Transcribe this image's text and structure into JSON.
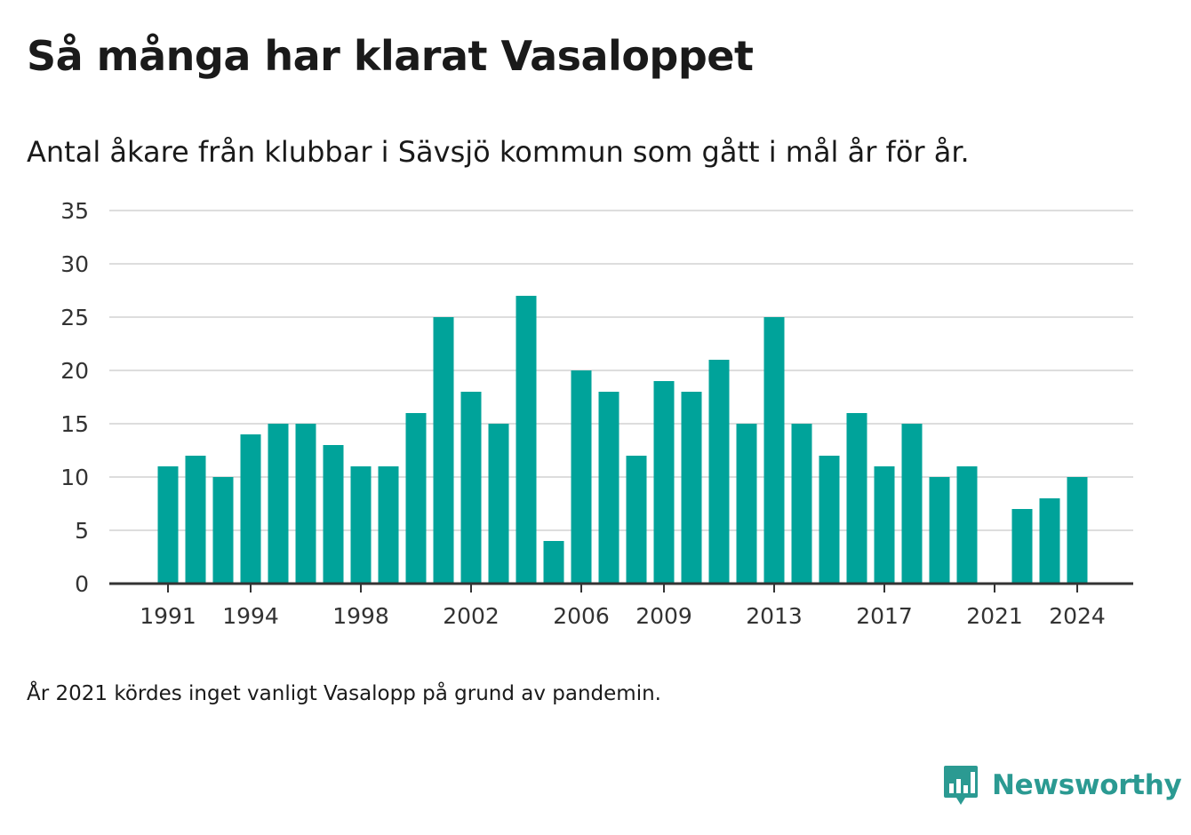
{
  "header": {
    "title": "Så många har klarat Vasaloppet",
    "subtitle": "Antal åkare från klubbar i Sävsjö kommun som gått i mål år för år."
  },
  "footnote": "År 2021 kördes inget vanligt Vasalopp på grund av pandemin.",
  "brand": {
    "name": "Newsworthy",
    "icon": "newsworthy-logo-icon",
    "color": "#2b9a92"
  },
  "chart_data": {
    "type": "bar",
    "title": "",
    "xlabel": "",
    "ylabel": "",
    "categories": [
      1991,
      1992,
      1993,
      1994,
      1995,
      1996,
      1997,
      1998,
      1999,
      2000,
      2001,
      2002,
      2003,
      2004,
      2005,
      2006,
      2007,
      2008,
      2009,
      2010,
      2011,
      2012,
      2013,
      2014,
      2015,
      2016,
      2017,
      2018,
      2019,
      2020,
      2021,
      2022,
      2023,
      2024
    ],
    "values": [
      11,
      12,
      10,
      14,
      15,
      15,
      13,
      11,
      11,
      16,
      25,
      18,
      15,
      27,
      4,
      20,
      18,
      12,
      19,
      18,
      21,
      15,
      25,
      15,
      12,
      16,
      11,
      15,
      10,
      11,
      null,
      7,
      8,
      10
    ],
    "ylim": [
      0,
      35
    ],
    "yticks": [
      0,
      5,
      10,
      15,
      20,
      25,
      30,
      35
    ],
    "xticks": [
      1991,
      1994,
      1998,
      2002,
      2006,
      2009,
      2013,
      2017,
      2021,
      2024
    ],
    "grid": true,
    "bar_color": "#00a39a",
    "grid_color": "#dddddd",
    "axis_color": "#333333"
  }
}
